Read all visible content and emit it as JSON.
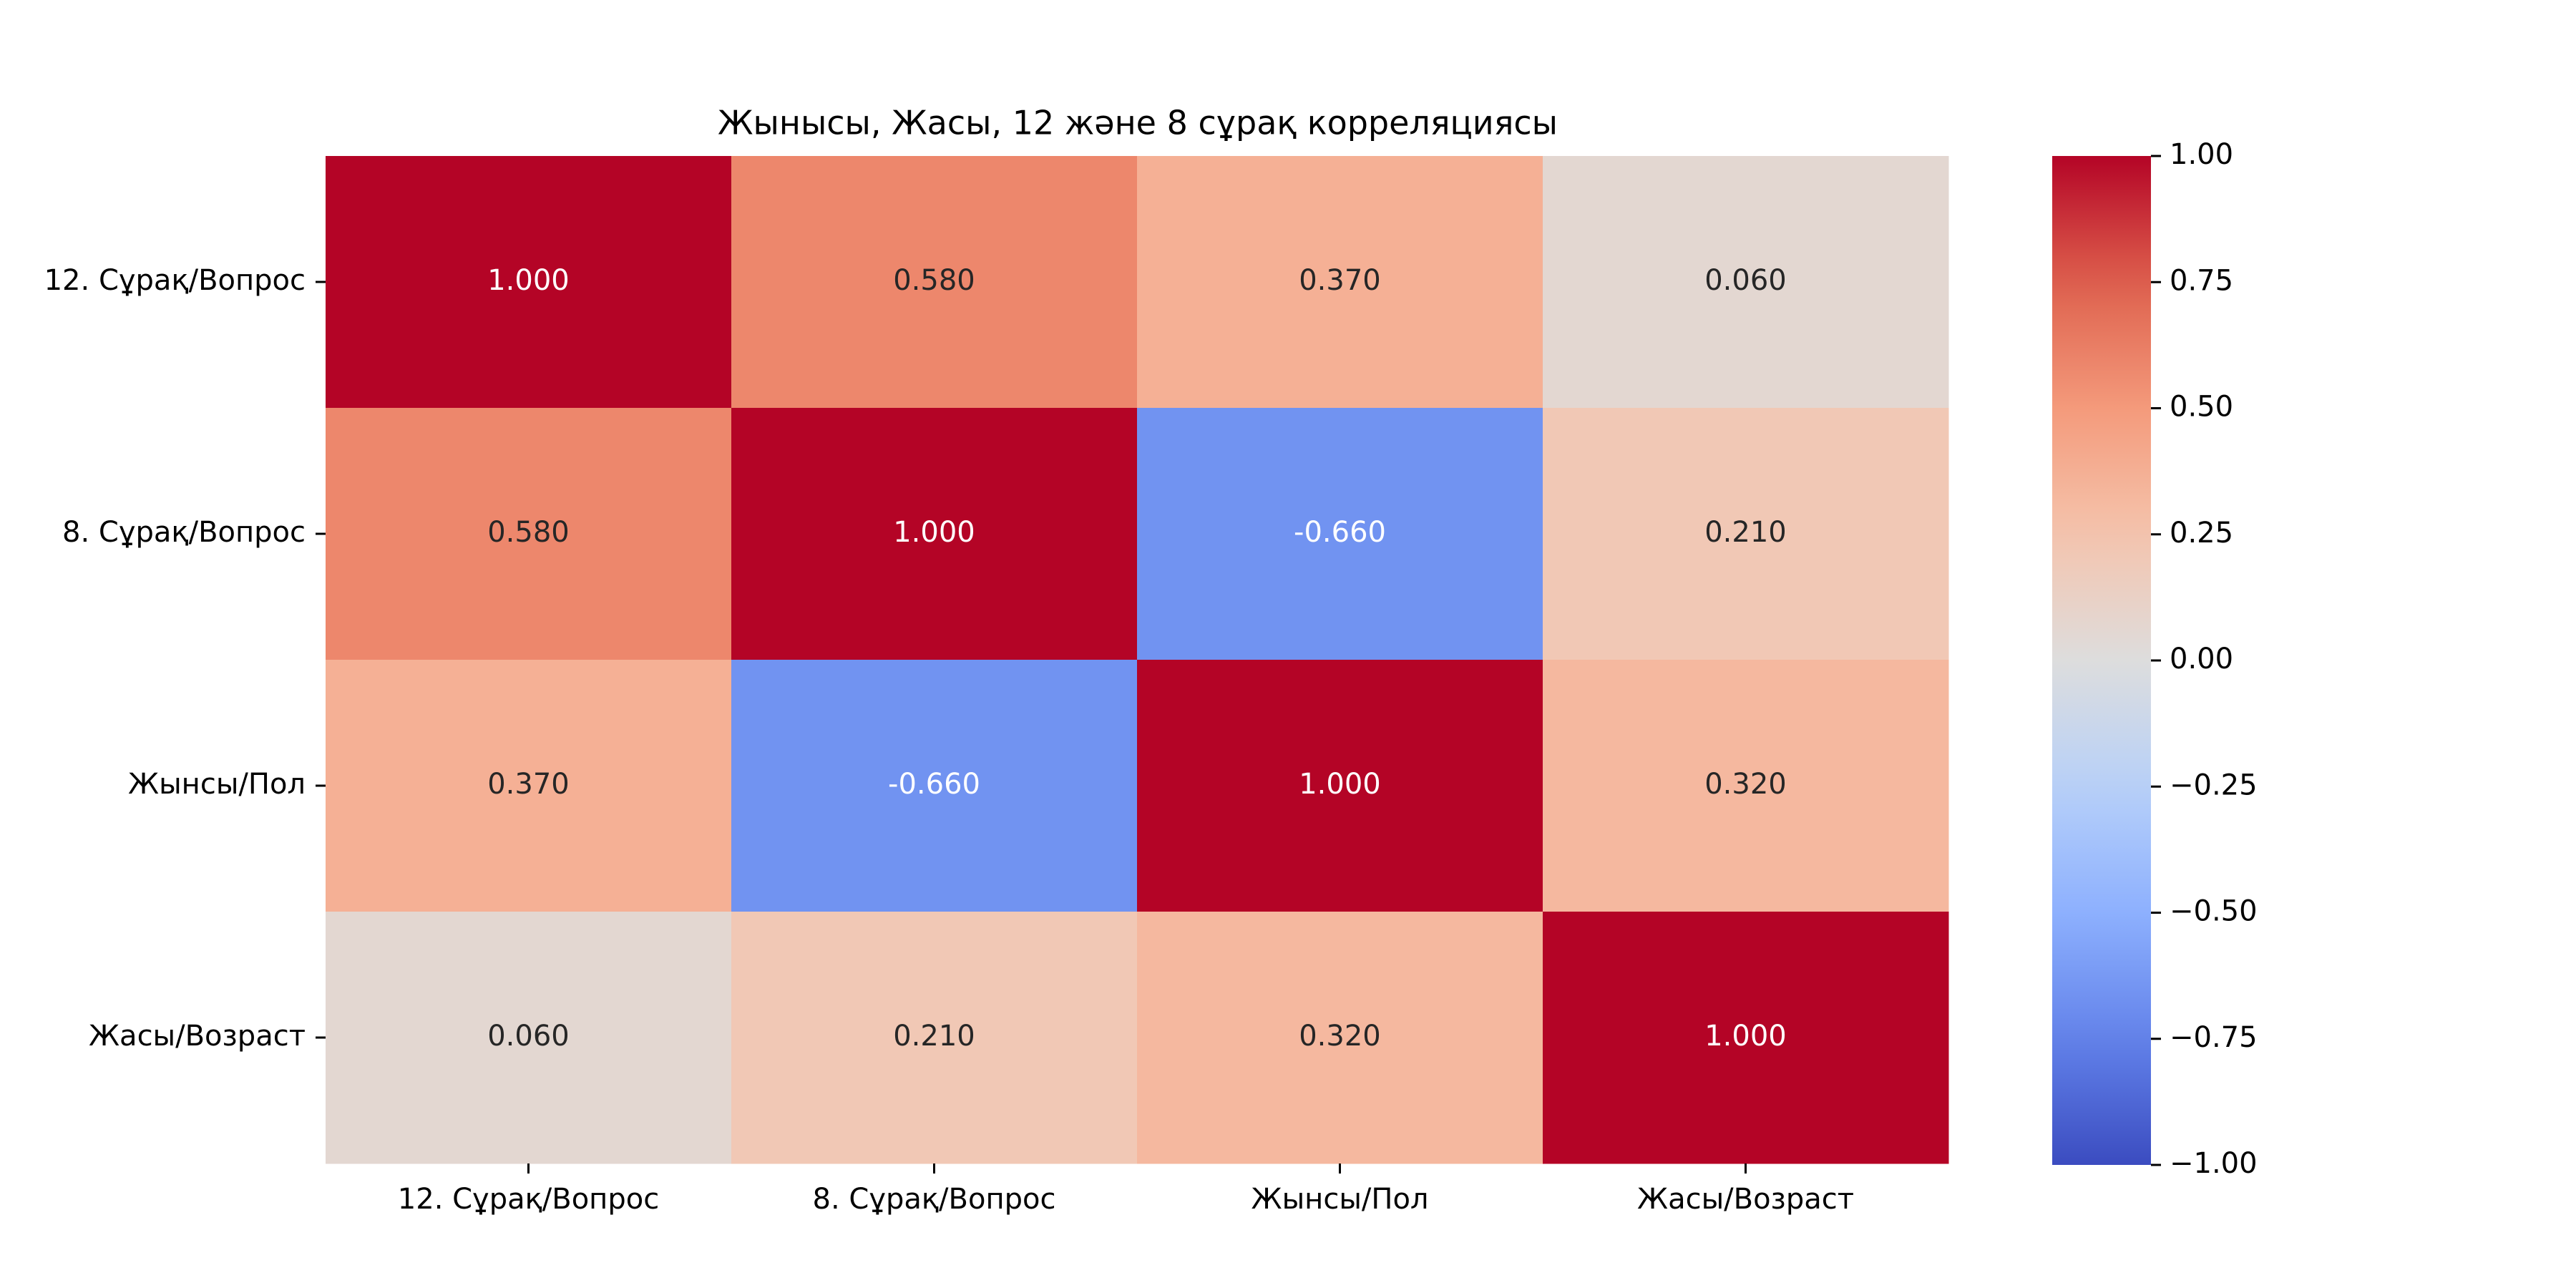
{
  "chart_data": {
    "type": "heatmap",
    "title": "Жынысы, Жасы, 12 және 8 сұрақ корреляциясы",
    "x_categories": [
      "12. Сұрақ/Вопрос",
      "8. Сұрақ/Вопрос",
      "Жынсы/Пол",
      "Жасы/Возраст"
    ],
    "y_categories": [
      "12. Сұрақ/Вопрос",
      "8. Сұрақ/Вопрос",
      "Жынсы/Пол",
      "Жасы/Возраст"
    ],
    "values": [
      [
        1.0,
        0.58,
        0.37,
        0.06
      ],
      [
        0.58,
        1.0,
        -0.66,
        0.21
      ],
      [
        0.37,
        -0.66,
        1.0,
        0.32
      ],
      [
        0.06,
        0.21,
        0.32,
        1.0
      ]
    ],
    "value_format": "0.000",
    "colormap": "coolwarm",
    "vmin": -1.0,
    "vmax": 1.0,
    "colorbar": {
      "ticks": [
        1.0,
        0.75,
        0.5,
        0.25,
        0.0,
        -0.25,
        -0.5,
        -0.75,
        -1.0
      ],
      "tick_labels": [
        "1.00",
        "0.75",
        "0.50",
        "0.25",
        "0.00",
        "−0.25",
        "−0.50",
        "−0.75",
        "−1.00"
      ],
      "position": "right"
    },
    "annotation_colors": {
      "dark": "#262626",
      "light": "#ffffff"
    },
    "grid": false,
    "legend": "none"
  }
}
